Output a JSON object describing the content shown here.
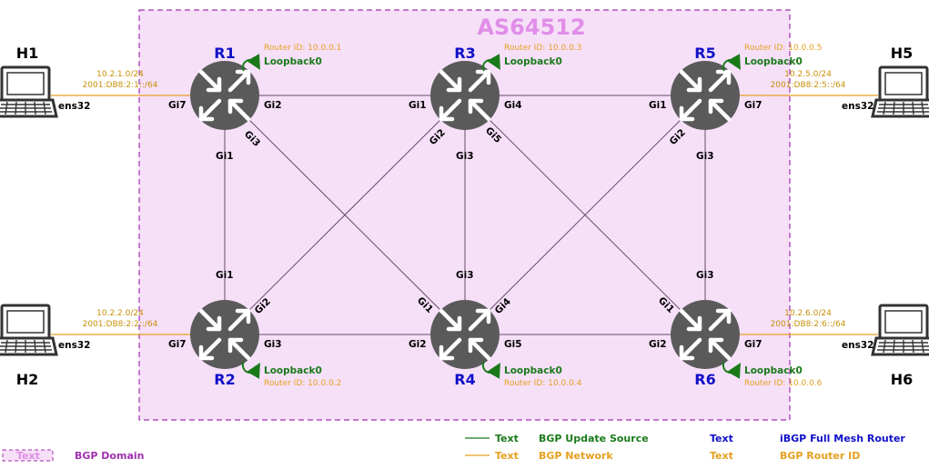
{
  "domain_label": "AS64512",
  "colors": {
    "domain_fill": "#f6e0f8",
    "domain_border": "#a030b0",
    "link": "#6a4a6a",
    "router_body": "#5a5a5a",
    "green": "#1a7a1a",
    "orange": "#e6a020",
    "blue": "#1010c8",
    "purple": "#a030b0"
  },
  "routers": [
    {
      "id": "R1",
      "name": "R1",
      "router_id": "Router ID: 10.0.0.1",
      "loopback": "Loopback0"
    },
    {
      "id": "R2",
      "name": "R2",
      "router_id": "Router ID: 10.0.0.2",
      "loopback": "Loopback0"
    },
    {
      "id": "R3",
      "name": "R3",
      "router_id": "Router ID: 10.0.0.3",
      "loopback": "Loopback0"
    },
    {
      "id": "R4",
      "name": "R4",
      "router_id": "Router ID: 10.0.0.4",
      "loopback": "Loopback0"
    },
    {
      "id": "R5",
      "name": "R5",
      "router_id": "Router ID: 10.0.0.5",
      "loopback": "Loopback0"
    },
    {
      "id": "R6",
      "name": "R6",
      "router_id": "Router ID: 10.0.0.6",
      "loopback": "Loopback0"
    }
  ],
  "hosts": [
    {
      "id": "H1",
      "name": "H1",
      "iface": "ens32",
      "net4": "10.2.1.0/24",
      "net6": "2001:DB8:2:1::/64"
    },
    {
      "id": "H2",
      "name": "H2",
      "iface": "ens32",
      "net4": "10.2.2.0/24",
      "net6": "2001:DB8:2:2::/64"
    },
    {
      "id": "H5",
      "name": "H5",
      "iface": "ens32",
      "net4": "10.2.5.0/24",
      "net6": "2001:DB8:2:5::/64"
    },
    {
      "id": "H6",
      "name": "H6",
      "iface": "ens32",
      "net4": "10.2.6.0/24",
      "net6": "2001:DB8:2:6::/64"
    }
  ],
  "interfaces": {
    "r1_gi7": "Gi7",
    "r1_gi2": "Gi2",
    "r1_gi3": "Gi3",
    "r1_gi1": "Gi1",
    "r3_gi1": "Gi1",
    "r3_gi4": "Gi4",
    "r3_gi2": "Gi2",
    "r3_gi5": "Gi5",
    "r3_gi3": "Gi3",
    "r5_gi1": "Gi1",
    "r5_gi7": "Gi7",
    "r5_gi2": "Gi2",
    "r5_gi3": "Gi3",
    "r2_gi1": "Gi1",
    "r2_gi2": "Gi2",
    "r2_gi7": "Gi7",
    "r2_gi3": "Gi3",
    "r4_gi3": "Gi3",
    "r4_gi1": "Gi1",
    "r4_gi4": "Gi4",
    "r4_gi2": "Gi2",
    "r4_gi5": "Gi5",
    "r6_gi3": "Gi3",
    "r6_gi1": "Gi1",
    "r6_gi2": "Gi2",
    "r6_gi7": "Gi7"
  },
  "legend": {
    "domain_swatch_text": "Text",
    "domain": "BGP  Domain",
    "green_sample": "Text",
    "green_label": "BGP Update Source",
    "orange_sample": "Text",
    "orange_label": "BGP Network",
    "blue_sample": "Text",
    "blue_label": "iBGP Full Mesh Router",
    "routerid_sample": "Text",
    "routerid_label": "BGP Router ID"
  }
}
